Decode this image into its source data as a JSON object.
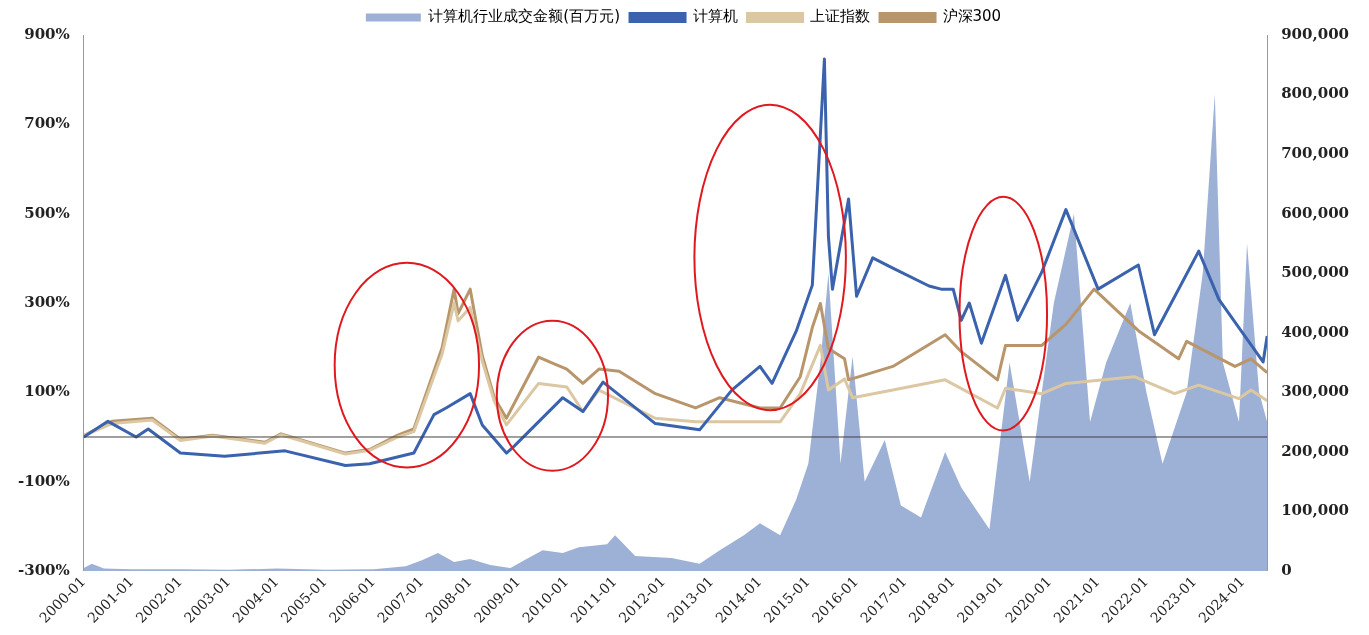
{
  "chart_data": {
    "type": "line",
    "legend": "top",
    "grid": false,
    "marker": "none",
    "xlim": [
      "2000-01",
      "2024-07"
    ],
    "xticks": [
      "2000-01",
      "2001-01",
      "2002-01",
      "2003-01",
      "2004-01",
      "2005-01",
      "2006-01",
      "2007-01",
      "2008-01",
      "2009-01",
      "2010-01",
      "2011-01",
      "2012-01",
      "2013-01",
      "2014-01",
      "2015-01",
      "2016-01",
      "2017-01",
      "2018-01",
      "2019-01",
      "2020-01",
      "2021-01",
      "2022-01",
      "2023-01",
      "2024-01"
    ],
    "ylim": [
      -300,
      900
    ],
    "yticks": [
      {
        "value": -300,
        "label": "-300%"
      },
      {
        "value": -100,
        "label": "-100%"
      },
      {
        "value": 100,
        "label": "100%"
      },
      {
        "value": 300,
        "label": "300%"
      },
      {
        "value": 500,
        "label": "500%"
      },
      {
        "value": 700,
        "label": "700%"
      },
      {
        "value": 900,
        "label": "900%"
      }
    ],
    "y2lim": [
      0,
      900000
    ],
    "y2ticks": [
      {
        "value": 0,
        "label": "0"
      },
      {
        "value": 100000,
        "label": "100,000"
      },
      {
        "value": 200000,
        "label": "200,000"
      },
      {
        "value": 300000,
        "label": "300,000"
      },
      {
        "value": 400000,
        "label": "400,000"
      },
      {
        "value": 500000,
        "label": "500,000"
      },
      {
        "value": 600000,
        "label": "600,000"
      },
      {
        "value": 700000,
        "label": "700,000"
      },
      {
        "value": 800000,
        "label": "800,000"
      },
      {
        "value": 900000,
        "label": "900,000"
      }
    ],
    "ref_lines": [
      {
        "axis": "y",
        "value": 0,
        "color": "#404040"
      }
    ],
    "series": [
      {
        "name": "计算机行业成交金额(百万元)",
        "type": "area",
        "axis": "y2",
        "color": "#9db0d6",
        "x": [
          "2000-01",
          "2000-03",
          "2000-06",
          "2001-01",
          "2002-01",
          "2003-01",
          "2004-01",
          "2005-01",
          "2006-01",
          "2006-09",
          "2007-01",
          "2007-05",
          "2007-09",
          "2008-01",
          "2008-06",
          "2008-11",
          "2009-03",
          "2009-07",
          "2009-12",
          "2010-04",
          "2010-11",
          "2011-01",
          "2011-06",
          "2012-03",
          "2012-10",
          "2013-03",
          "2013-09",
          "2014-01",
          "2014-06",
          "2014-10",
          "2015-01",
          "2015-04",
          "2015-06",
          "2015-09",
          "2015-12",
          "2016-03",
          "2016-08",
          "2016-12",
          "2017-05",
          "2017-11",
          "2018-03",
          "2018-10",
          "2019-03",
          "2019-08",
          "2020-02",
          "2020-07",
          "2020-11",
          "2021-03",
          "2021-09",
          "2022-01",
          "2022-05",
          "2022-11",
          "2023-03",
          "2023-06",
          "2023-08",
          "2023-12",
          "2024-02",
          "2024-05",
          "2024-07"
        ],
        "values": [
          5000,
          12000,
          4000,
          3000,
          3000,
          2000,
          4000,
          2000,
          3000,
          8000,
          18000,
          30000,
          15000,
          20000,
          10000,
          5000,
          20000,
          35000,
          30000,
          40000,
          45000,
          60000,
          25000,
          22000,
          12000,
          35000,
          60000,
          80000,
          60000,
          120000,
          180000,
          350000,
          500000,
          180000,
          360000,
          150000,
          220000,
          110000,
          90000,
          200000,
          140000,
          70000,
          350000,
          150000,
          450000,
          600000,
          250000,
          350000,
          450000,
          300000,
          180000,
          300000,
          500000,
          800000,
          350000,
          250000,
          550000,
          300000,
          250000
        ]
      },
      {
        "name": "计算机",
        "type": "line",
        "color": "#3a62ad",
        "x": [
          "2000-01",
          "2000-07",
          "2001-02",
          "2001-05",
          "2002-01",
          "2002-12",
          "2004-03",
          "2005-06",
          "2005-12",
          "2006-11",
          "2007-04",
          "2007-07",
          "2008-01",
          "2008-04",
          "2008-10",
          "2008-12",
          "2009-12",
          "2010-05",
          "2010-10",
          "2011-11",
          "2012-10",
          "2013-06",
          "2014-01",
          "2014-04",
          "2014-10",
          "2015-02",
          "2015-05",
          "2015-06",
          "2015-07",
          "2015-11",
          "2016-01",
          "2016-05",
          "2016-10",
          "2017-07",
          "2017-10",
          "2018-01",
          "2018-03",
          "2018-05",
          "2018-08",
          "2019-02",
          "2019-05",
          "2019-11",
          "2020-05",
          "2021-01",
          "2021-11",
          "2022-03",
          "2023-02",
          "2023-07",
          "2024-06",
          "2024-07"
        ],
        "values": [
          0,
          35,
          0,
          18,
          -36,
          -43,
          -31,
          -64,
          -60,
          -36,
          50,
          65,
          97,
          27,
          -36,
          -20,
          88,
          57,
          123,
          30,
          16,
          105,
          158,
          120,
          237,
          340,
          846,
          449,
          331,
          533,
          315,
          401,
          378,
          338,
          331,
          331,
          261,
          300,
          210,
          362,
          261,
          369,
          509,
          331,
          385,
          229,
          416,
          308,
          168,
          226
        ]
      },
      {
        "name": "上证指数",
        "type": "line",
        "color": "#dcc7a3",
        "x": [
          "2000-01",
          "2000-08",
          "2001-06",
          "2002-01",
          "2002-09",
          "2003-10",
          "2004-02",
          "2005-06",
          "2005-12",
          "2006-07",
          "2006-11",
          "2007-06",
          "2007-09",
          "2007-10",
          "2008-01",
          "2008-04",
          "2008-07",
          "2008-10",
          "2009-06",
          "2010-01",
          "2010-05",
          "2010-09",
          "2011-11",
          "2012-09",
          "2013-03",
          "2014-06",
          "2014-11",
          "2015-04",
          "2015-06",
          "2015-10",
          "2015-12",
          "2016-10",
          "2017-11",
          "2018-12",
          "2019-02",
          "2019-11",
          "2020-05",
          "2021-10",
          "2022-08",
          "2023-02",
          "2023-12",
          "2024-03",
          "2024-07"
        ],
        "values": [
          3,
          30,
          38,
          -8,
          2,
          -14,
          5,
          -38,
          -30,
          0,
          12,
          185,
          300,
          260,
          290,
          170,
          80,
          27,
          120,
          112,
          57,
          105,
          42,
          34,
          34,
          34,
          97,
          205,
          105,
          130,
          88,
          105,
          128,
          65,
          109,
          97,
          120,
          135,
          97,
          116,
          86,
          105,
          81
        ]
      },
      {
        "name": "沪深300",
        "type": "line",
        "color": "#b8956a",
        "x": [
          "2000-01",
          "2000-08",
          "2001-06",
          "2002-01",
          "2002-09",
          "2003-10",
          "2004-02",
          "2005-06",
          "2005-12",
          "2006-07",
          "2006-11",
          "2007-06",
          "2007-09",
          "2007-10",
          "2008-01",
          "2008-04",
          "2008-07",
          "2008-10",
          "2009-06",
          "2009-09",
          "2010-01",
          "2010-05",
          "2010-09",
          "2011-02",
          "2011-11",
          "2012-09",
          "2013-03",
          "2014-01",
          "2014-06",
          "2014-11",
          "2015-02",
          "2015-04",
          "2015-06",
          "2015-10",
          "2015-11",
          "2016-10",
          "2017-11",
          "2018-03",
          "2018-12",
          "2019-02",
          "2019-11",
          "2020-05",
          "2020-12",
          "2021-11",
          "2022-09",
          "2022-11",
          "2023-11",
          "2024-03",
          "2024-07"
        ],
        "values": [
          3,
          35,
          42,
          -5,
          4,
          -12,
          7,
          -36,
          -28,
          4,
          18,
          199,
          331,
          276,
          331,
          182,
          88,
          42,
          179,
          167,
          152,
          120,
          152,
          147,
          97,
          65,
          88,
          65,
          65,
          135,
          245,
          299,
          198,
          175,
          128,
          158,
          229,
          191,
          128,
          205,
          205,
          252,
          331,
          238,
          175,
          214,
          158,
          175,
          144
        ]
      }
    ]
  }
}
